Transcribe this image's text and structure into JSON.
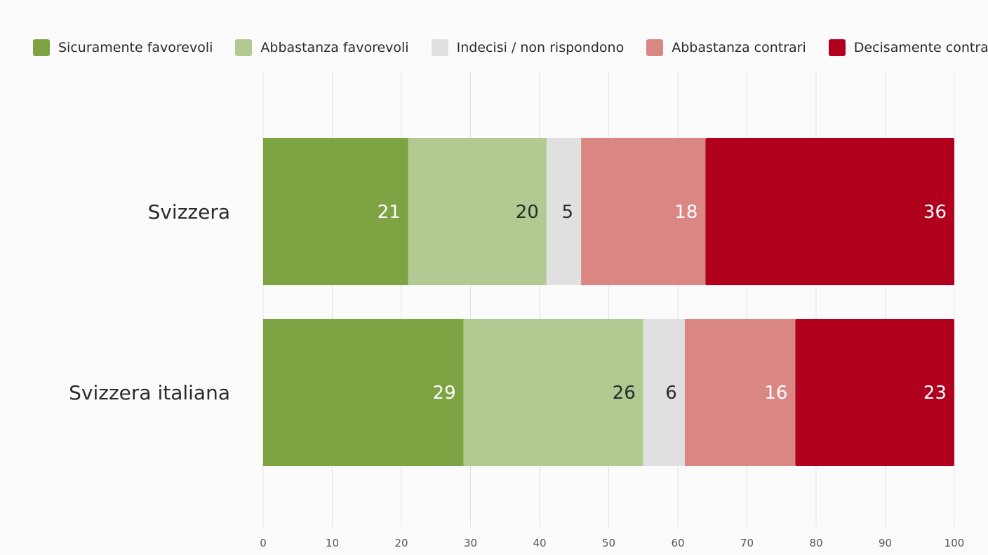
{
  "chart_data": {
    "type": "bar",
    "orientation": "horizontal",
    "stacked": true,
    "categories": [
      "Svizzera",
      "Svizzera italiana"
    ],
    "series": [
      {
        "name": "Sicuramente favorevoli",
        "color": "#7ea342",
        "label_color": "#ffffff",
        "values": [
          21,
          29
        ]
      },
      {
        "name": "Abbastanza favorevoli",
        "color": "#b2ca91",
        "label_color": "#2b2b2b",
        "values": [
          20,
          26
        ]
      },
      {
        "name": "Indecisi / non rispondono",
        "color": "#e0e0e0",
        "label_color": "#2b2b2b",
        "values": [
          5,
          6
        ]
      },
      {
        "name": "Abbastanza contrari",
        "color": "#da8783",
        "label_color": "#ffffff",
        "values": [
          18,
          16
        ]
      },
      {
        "name": "Decisamente contrari",
        "color": "#b0001e",
        "label_color": "#ffffff",
        "values": [
          36,
          23
        ]
      }
    ],
    "x_ticks": [
      0,
      10,
      20,
      30,
      40,
      50,
      60,
      70,
      80,
      90,
      100
    ],
    "xlim": [
      0,
      100
    ],
    "title": "",
    "xlabel": "",
    "ylabel": "",
    "grid": true,
    "legend_position": "top-left"
  }
}
